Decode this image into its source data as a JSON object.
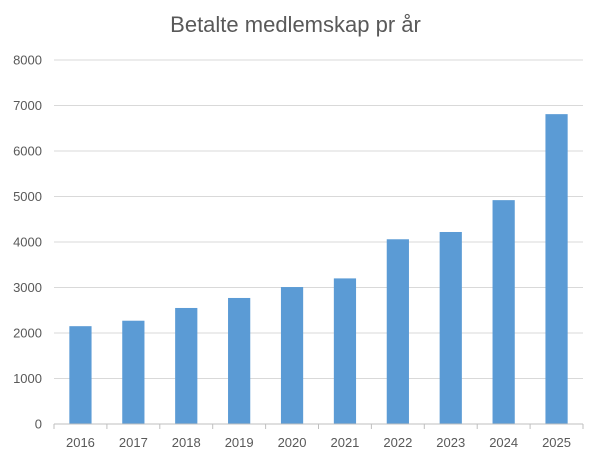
{
  "chart_data": {
    "type": "bar",
    "title": "Betalte medlemskap pr år",
    "xlabel": "",
    "ylabel": "",
    "categories": [
      "2016",
      "2017",
      "2018",
      "2019",
      "2020",
      "2021",
      "2022",
      "2023",
      "2024",
      "2025"
    ],
    "series": [
      {
        "values": [
          2150,
          2270,
          2550,
          2770,
          3010,
          3200,
          4060,
          4220,
          4920,
          6810
        ]
      }
    ],
    "ylim": [
      0,
      8000
    ],
    "yticks": [
      0,
      1000,
      2000,
      3000,
      4000,
      5000,
      6000,
      7000,
      8000
    ],
    "grid": true,
    "legend": "none",
    "colors": {
      "bar": "#5b9bd5",
      "grid": "#d9d9d9",
      "axis": "#bfbfbf",
      "text": "#595959"
    }
  }
}
